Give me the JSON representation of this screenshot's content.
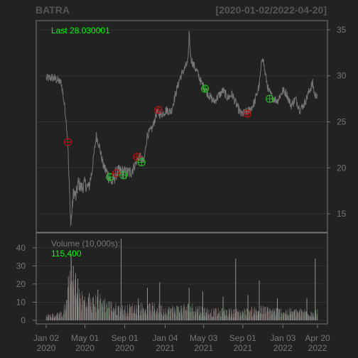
{
  "header": {
    "symbol": "BATRA",
    "range": "[2020-01-02/2022-04-20]"
  },
  "price_panel": {
    "last_label": "Last 28.030001"
  },
  "volume_panel": {
    "title": "Volume (10,000s):",
    "last_value": "115,400"
  },
  "colors": {
    "background": "#222222",
    "grid": "#333333",
    "frame": "#777777",
    "price_line": "#777777",
    "up": "#00ff00",
    "down": "#ff0000",
    "marker_up": "#22bb22",
    "marker_down": "#bb1111",
    "label_text": "#777777"
  },
  "chart_data": [
    {
      "type": "line",
      "title": "",
      "ylim": [
        13,
        36
      ],
      "yticks": [
        15,
        20,
        25,
        30,
        35
      ],
      "grid": true,
      "series_close": [
        {
          "d": "2020-01-02",
          "v": 29.7
        },
        {
          "d": "2020-01-20",
          "v": 29.8
        },
        {
          "d": "2020-02-03",
          "v": 29.6
        },
        {
          "d": "2020-02-18",
          "v": 29.2
        },
        {
          "d": "2020-02-26",
          "v": 27.2
        },
        {
          "d": "2020-03-03",
          "v": 25.5
        },
        {
          "d": "2020-03-09",
          "v": 22.8
        },
        {
          "d": "2020-03-12",
          "v": 19.0
        },
        {
          "d": "2020-03-16",
          "v": 16.0
        },
        {
          "d": "2020-03-18",
          "v": 13.8
        },
        {
          "d": "2020-03-23",
          "v": 15.8
        },
        {
          "d": "2020-03-27",
          "v": 17.5
        },
        {
          "d": "2020-04-03",
          "v": 16.8
        },
        {
          "d": "2020-04-10",
          "v": 18.4
        },
        {
          "d": "2020-04-20",
          "v": 17.8
        },
        {
          "d": "2020-05-01",
          "v": 18.3
        },
        {
          "d": "2020-05-12",
          "v": 17.8
        },
        {
          "d": "2020-05-22",
          "v": 19.5
        },
        {
          "d": "2020-06-05",
          "v": 23.5
        },
        {
          "d": "2020-06-15",
          "v": 22.3
        },
        {
          "d": "2020-06-26",
          "v": 20.3
        },
        {
          "d": "2020-07-10",
          "v": 19.3
        },
        {
          "d": "2020-07-24",
          "v": 18.4
        },
        {
          "d": "2020-08-07",
          "v": 19.5
        },
        {
          "d": "2020-08-21",
          "v": 19.6
        },
        {
          "d": "2020-09-04",
          "v": 19.4
        },
        {
          "d": "2020-09-18",
          "v": 19.5
        },
        {
          "d": "2020-10-02",
          "v": 20.3
        },
        {
          "d": "2020-10-16",
          "v": 21.3
        },
        {
          "d": "2020-10-30",
          "v": 20.6
        },
        {
          "d": "2020-11-09",
          "v": 23.5
        },
        {
          "d": "2020-11-25",
          "v": 24.3
        },
        {
          "d": "2020-12-09",
          "v": 26.0
        },
        {
          "d": "2020-12-23",
          "v": 25.8
        },
        {
          "d": "2021-01-08",
          "v": 26.3
        },
        {
          "d": "2021-01-22",
          "v": 26.1
        },
        {
          "d": "2021-02-05",
          "v": 28.0
        },
        {
          "d": "2021-02-19",
          "v": 29.8
        },
        {
          "d": "2021-03-05",
          "v": 30.8
        },
        {
          "d": "2021-03-16",
          "v": 31.5
        },
        {
          "d": "2021-03-19",
          "v": 34.8
        },
        {
          "d": "2021-03-24",
          "v": 32.0
        },
        {
          "d": "2021-04-01",
          "v": 31.2
        },
        {
          "d": "2021-04-12",
          "v": 30.5
        },
        {
          "d": "2021-04-26",
          "v": 29.2
        },
        {
          "d": "2021-05-07",
          "v": 28.6
        },
        {
          "d": "2021-05-21",
          "v": 27.8
        },
        {
          "d": "2021-06-04",
          "v": 27.2
        },
        {
          "d": "2021-06-18",
          "v": 27.8
        },
        {
          "d": "2021-07-02",
          "v": 28.4
        },
        {
          "d": "2021-07-16",
          "v": 27.6
        },
        {
          "d": "2021-07-30",
          "v": 28.0
        },
        {
          "d": "2021-08-13",
          "v": 26.8
        },
        {
          "d": "2021-08-27",
          "v": 25.8
        },
        {
          "d": "2021-09-10",
          "v": 26.0
        },
        {
          "d": "2021-09-24",
          "v": 26.3
        },
        {
          "d": "2021-10-08",
          "v": 27.2
        },
        {
          "d": "2021-10-22",
          "v": 29.0
        },
        {
          "d": "2021-11-01",
          "v": 32.3
        },
        {
          "d": "2021-11-08",
          "v": 30.5
        },
        {
          "d": "2021-11-19",
          "v": 28.4
        },
        {
          "d": "2021-12-03",
          "v": 27.6
        },
        {
          "d": "2021-12-17",
          "v": 27.3
        },
        {
          "d": "2022-01-03",
          "v": 28.4
        },
        {
          "d": "2022-01-14",
          "v": 28.1
        },
        {
          "d": "2022-01-28",
          "v": 26.8
        },
        {
          "d": "2022-02-11",
          "v": 27.5
        },
        {
          "d": "2022-02-25",
          "v": 26.3
        },
        {
          "d": "2022-03-11",
          "v": 27.0
        },
        {
          "d": "2022-03-25",
          "v": 28.3
        },
        {
          "d": "2022-04-05",
          "v": 29.2
        },
        {
          "d": "2022-04-12",
          "v": 27.8
        },
        {
          "d": "2022-04-20",
          "v": 28.03
        }
      ],
      "markers": [
        {
          "d": "2020-03-09",
          "v": 22.8,
          "kind": "down"
        },
        {
          "d": "2020-07-17",
          "v": 19.0,
          "kind": "up"
        },
        {
          "d": "2020-08-05",
          "v": 19.4,
          "kind": "down"
        },
        {
          "d": "2020-08-28",
          "v": 19.2,
          "kind": "up"
        },
        {
          "d": "2020-10-09",
          "v": 21.2,
          "kind": "down"
        },
        {
          "d": "2020-10-23",
          "v": 20.6,
          "kind": "up"
        },
        {
          "d": "2020-12-14",
          "v": 26.3,
          "kind": "down"
        },
        {
          "d": "2021-05-07",
          "v": 28.6,
          "kind": "up"
        },
        {
          "d": "2021-09-15",
          "v": 25.9,
          "kind": "down"
        },
        {
          "d": "2021-11-23",
          "v": 27.5,
          "kind": "up"
        }
      ]
    },
    {
      "type": "bar",
      "title": "Volume (10,000s):",
      "ylim": [
        0,
        45
      ],
      "yticks": [
        0,
        10,
        20,
        30,
        40
      ],
      "grid": true,
      "volume_profile": [
        {
          "d": "2020-01-02",
          "v": 2
        },
        {
          "d": "2020-02-20",
          "v": 3
        },
        {
          "d": "2020-03-05",
          "v": 8
        },
        {
          "d": "2020-03-16",
          "v": 22
        },
        {
          "d": "2020-03-27",
          "v": 15
        },
        {
          "d": "2020-04-20",
          "v": 10
        },
        {
          "d": "2020-05-20",
          "v": 8
        },
        {
          "d": "2020-06-15",
          "v": 9
        },
        {
          "d": "2020-08-01",
          "v": 6
        },
        {
          "d": "2020-09-01",
          "v": 5
        },
        {
          "d": "2020-10-01",
          "v": 6
        },
        {
          "d": "2020-11-15",
          "v": 6
        },
        {
          "d": "2021-01-15",
          "v": 5
        },
        {
          "d": "2021-03-20",
          "v": 6
        },
        {
          "d": "2021-06-01",
          "v": 4
        },
        {
          "d": "2021-09-01",
          "v": 4
        },
        {
          "d": "2021-11-01",
          "v": 5
        },
        {
          "d": "2022-01-15",
          "v": 4
        },
        {
          "d": "2022-04-20",
          "v": 4
        }
      ],
      "spikes": [
        {
          "d": "2020-03-19",
          "v": 36
        },
        {
          "d": "2020-03-26",
          "v": 30
        },
        {
          "d": "2020-04-02",
          "v": 26
        },
        {
          "d": "2020-04-09",
          "v": 23
        },
        {
          "d": "2020-05-14",
          "v": 15
        },
        {
          "d": "2020-06-10",
          "v": 17
        },
        {
          "d": "2020-08-21",
          "v": 45
        },
        {
          "d": "2020-10-13",
          "v": 12
        },
        {
          "d": "2020-11-10",
          "v": 18
        },
        {
          "d": "2020-12-18",
          "v": 21
        },
        {
          "d": "2021-03-19",
          "v": 18
        },
        {
          "d": "2021-04-30",
          "v": 16
        },
        {
          "d": "2021-07-02",
          "v": 13
        },
        {
          "d": "2021-08-10",
          "v": 34
        },
        {
          "d": "2021-09-17",
          "v": 14
        },
        {
          "d": "2021-10-22",
          "v": 22
        },
        {
          "d": "2021-12-17",
          "v": 12
        },
        {
          "d": "2022-03-18",
          "v": 12
        },
        {
          "d": "2022-04-13",
          "v": 34
        }
      ],
      "last_value": 11.54
    }
  ],
  "x_axis": {
    "labels": [
      {
        "d": "2020-01-02",
        "top": "Jan 02",
        "bottom": "2020"
      },
      {
        "d": "2020-05-01",
        "top": "May 01",
        "bottom": "2020"
      },
      {
        "d": "2020-09-01",
        "top": "Sep 01",
        "bottom": "2020"
      },
      {
        "d": "2021-01-04",
        "top": "Jan 04",
        "bottom": "2021"
      },
      {
        "d": "2021-05-03",
        "top": "May 03",
        "bottom": "2021"
      },
      {
        "d": "2021-09-01",
        "top": "Sep 01",
        "bottom": "2021"
      },
      {
        "d": "2022-01-03",
        "top": "Jan 03",
        "bottom": "2022"
      },
      {
        "d": "2022-04-20",
        "top": "Apr 20",
        "bottom": "2022"
      }
    ],
    "range": [
      "2020-01-02",
      "2022-04-20"
    ]
  }
}
